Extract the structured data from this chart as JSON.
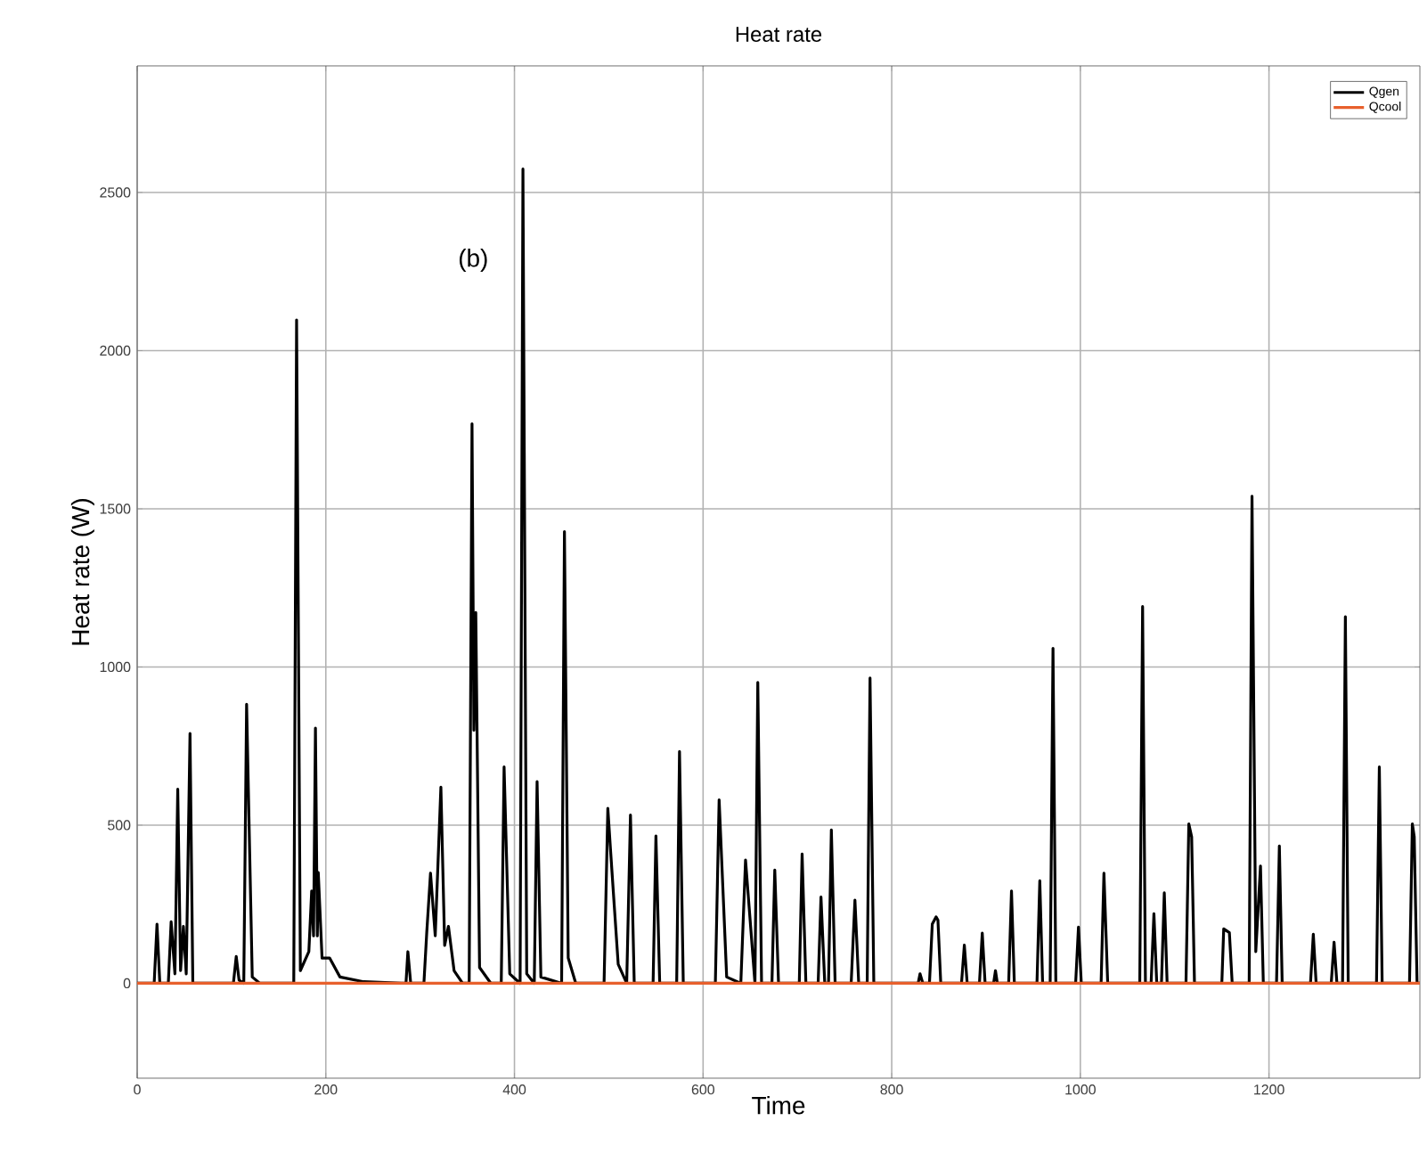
{
  "chart_data": {
    "type": "line",
    "title": "Heat rate",
    "xlabel": "Time",
    "ylabel": "Heat rate (W)",
    "annotations": [
      "(b)"
    ],
    "xlim": [
      0,
      1360
    ],
    "ylim": [
      -300,
      2900
    ],
    "xticks": [
      0,
      200,
      400,
      600,
      800,
      1000,
      1200
    ],
    "yticks": [
      0,
      500,
      1000,
      1500,
      2000,
      2500
    ],
    "grid": true,
    "legend": "top right",
    "marker": "none",
    "line_style": "solid",
    "series": [
      {
        "name": "Qgen",
        "color": "#000000",
        "x": [
          0,
          18,
          21,
          24,
          33,
          36,
          40,
          43,
          46,
          49,
          52,
          56,
          59,
          102,
          105,
          108,
          113,
          116,
          122,
          130,
          166,
          169,
          173,
          182,
          185,
          187,
          189,
          191,
          192,
          196,
          204,
          215,
          240,
          280,
          285,
          287,
          290,
          304,
          307,
          311,
          316,
          322,
          326,
          330,
          336,
          345,
          352,
          355,
          357,
          359,
          363,
          375,
          386,
          389,
          395,
          406,
          409,
          413,
          421,
          424,
          428,
          450,
          453,
          457,
          465,
          495,
          499,
          502,
          510,
          519,
          523,
          527,
          547,
          550,
          554,
          572,
          575,
          579,
          613,
          617,
          625,
          640,
          645,
          655,
          658,
          662,
          673,
          676,
          680,
          702,
          705,
          709,
          722,
          725,
          729,
          733,
          736,
          740,
          757,
          761,
          765,
          774,
          777,
          781,
          828,
          830,
          833,
          840,
          843,
          847,
          849,
          852,
          874,
          877,
          880,
          893,
          896,
          899,
          908,
          910,
          912,
          924,
          927,
          930,
          954,
          957,
          960,
          968,
          971,
          974,
          995,
          998,
          1001,
          1022,
          1025,
          1029,
          1063,
          1066,
          1069,
          1075,
          1078,
          1081,
          1086,
          1089,
          1092,
          1112,
          1115,
          1118,
          1121,
          1150,
          1152,
          1158,
          1161,
          1179,
          1182,
          1186,
          1191,
          1194,
          1208,
          1211,
          1214,
          1244,
          1247,
          1250,
          1266,
          1269,
          1272,
          1278,
          1281,
          1284,
          1314,
          1317,
          1320,
          1349,
          1352,
          1354,
          1357,
          1360
        ],
        "values": [
          0,
          0,
          187,
          0,
          0,
          195,
          30,
          614,
          40,
          180,
          30,
          790,
          0,
          0,
          85,
          10,
          0,
          882,
          20,
          0,
          0,
          2097,
          40,
          100,
          292,
          150,
          807,
          150,
          350,
          80,
          80,
          20,
          5,
          0,
          0,
          100,
          0,
          0,
          160,
          348,
          150,
          620,
          120,
          180,
          40,
          0,
          0,
          1769,
          800,
          1172,
          50,
          0,
          0,
          684,
          30,
          0,
          2574,
          30,
          0,
          638,
          20,
          0,
          1428,
          80,
          0,
          0,
          553,
          415,
          60,
          0,
          532,
          0,
          0,
          466,
          0,
          0,
          733,
          0,
          0,
          580,
          20,
          0,
          390,
          0,
          951,
          0,
          0,
          358,
          0,
          0,
          409,
          0,
          0,
          273,
          0,
          0,
          485,
          0,
          0,
          263,
          0,
          0,
          965,
          0,
          0,
          30,
          0,
          0,
          187,
          210,
          200,
          0,
          0,
          121,
          0,
          0,
          159,
          0,
          0,
          40,
          0,
          0,
          292,
          0,
          0,
          324,
          0,
          0,
          1059,
          0,
          0,
          178,
          0,
          0,
          348,
          0,
          0,
          1191,
          0,
          0,
          220,
          0,
          0,
          286,
          0,
          0,
          504,
          463,
          0,
          0,
          172,
          160,
          0,
          0,
          1540,
          100,
          371,
          0,
          0,
          434,
          0,
          0,
          155,
          0,
          0,
          130,
          0,
          0,
          1159,
          0,
          0,
          684,
          0,
          0,
          504,
          463,
          0,
          0
        ]
      },
      {
        "name": "Qcool",
        "color": "#e8602c",
        "x": [
          0,
          1360
        ],
        "values": [
          0,
          0
        ]
      }
    ]
  }
}
